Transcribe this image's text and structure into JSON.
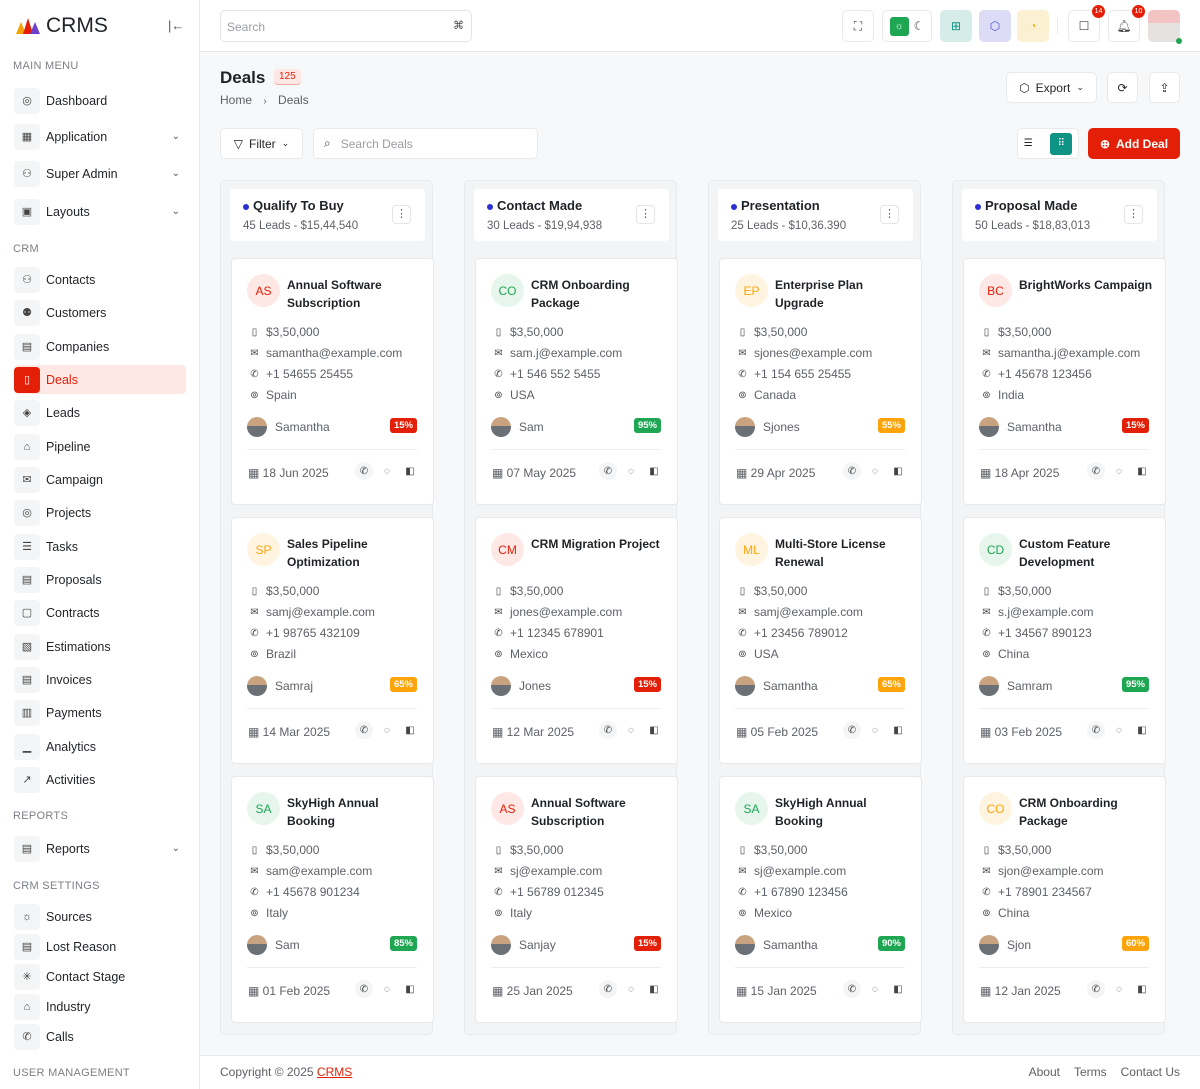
{
  "brand": {
    "name": "CRMS"
  },
  "sidebar": {
    "sections": [
      {
        "title": "MAIN MENU",
        "items": [
          {
            "label": "Dashboard",
            "icon": "◎"
          },
          {
            "label": "Application",
            "icon": "▦",
            "chevron": true
          },
          {
            "label": "Super Admin",
            "icon": "⚇",
            "chevron": true
          },
          {
            "label": "Layouts",
            "icon": "▣",
            "chevron": true
          }
        ]
      },
      {
        "title": "CRM",
        "items": [
          {
            "label": "Contacts",
            "icon": "⚇"
          },
          {
            "label": "Customers",
            "icon": "⚉"
          },
          {
            "label": "Companies",
            "icon": "▤"
          },
          {
            "label": "Deals",
            "icon": "▯",
            "active": true
          },
          {
            "label": "Leads",
            "icon": "◈"
          },
          {
            "label": "Pipeline",
            "icon": "⌂"
          },
          {
            "label": "Campaign",
            "icon": "✉"
          },
          {
            "label": "Projects",
            "icon": "◎"
          },
          {
            "label": "Tasks",
            "icon": "☰"
          },
          {
            "label": "Proposals",
            "icon": "▤"
          },
          {
            "label": "Contracts",
            "icon": "▢"
          },
          {
            "label": "Estimations",
            "icon": "▧"
          },
          {
            "label": "Invoices",
            "icon": "▤"
          },
          {
            "label": "Payments",
            "icon": "▥"
          },
          {
            "label": "Analytics",
            "icon": "▁"
          },
          {
            "label": "Activities",
            "icon": "↗"
          }
        ]
      },
      {
        "title": "REPORTS",
        "items": [
          {
            "label": "Reports",
            "icon": "▤",
            "chevron": true
          }
        ]
      },
      {
        "title": "CRM SETTINGS",
        "items": [
          {
            "label": "Sources",
            "icon": "☼"
          },
          {
            "label": "Lost Reason",
            "icon": "▤"
          },
          {
            "label": "Contact Stage",
            "icon": "✳"
          },
          {
            "label": "Industry",
            "icon": "⌂"
          },
          {
            "label": "Calls",
            "icon": "✆"
          }
        ]
      },
      {
        "title": "USER MANAGEMENT",
        "items": []
      }
    ]
  },
  "topbar": {
    "search_placeholder": "Search",
    "shortcut": "⌘",
    "notif_count": "14",
    "alert_count": "10"
  },
  "page": {
    "title": "Deals",
    "count": "125",
    "breadcrumb": [
      "Home",
      "Deals"
    ],
    "export": "Export",
    "filter": "Filter",
    "search_placeholder": "Search Deals",
    "add": "Add Deal"
  },
  "colors": {
    "accent": "#e41f07",
    "green": "#1fa653",
    "orange": "#fda40a",
    "teal": "#0e9384"
  },
  "columns": [
    {
      "title": "Qualify To Buy",
      "summary": "45 Leads - $15,44,540",
      "cards": [
        {
          "initials": "AS",
          "tone": "red",
          "name": "Annual Software Subscription",
          "amount": "$3,50,000",
          "email": "samantha@example.com",
          "phone": "+1 54655 25455",
          "country": "Spain",
          "owner": "Samantha",
          "pct": "15%",
          "pct_tone": "red",
          "date": "18 Jun 2025"
        },
        {
          "initials": "SP",
          "tone": "orange",
          "name": "Sales Pipeline Optimization",
          "amount": "$3,50,000",
          "email": "samj@example.com",
          "phone": "+1 98765 432109",
          "country": "Brazil",
          "owner": "Samraj",
          "pct": "65%",
          "pct_tone": "orange",
          "date": "14 Mar 2025"
        },
        {
          "initials": "SA",
          "tone": "green",
          "name": "SkyHigh Annual Booking",
          "amount": "$3,50,000",
          "email": "sam@example.com",
          "phone": "+1 45678 901234",
          "country": "Italy",
          "owner": "Sam",
          "pct": "85%",
          "pct_tone": "green",
          "date": "01 Feb 2025"
        }
      ]
    },
    {
      "title": "Contact Made",
      "summary": "30 Leads - $19,94,938",
      "cards": [
        {
          "initials": "CO",
          "tone": "green",
          "name": "CRM Onboarding Package",
          "amount": "$3,50,000",
          "email": "sam.j@example.com",
          "phone": "+1 546 552 5455",
          "country": "USA",
          "owner": "Sam",
          "pct": "95%",
          "pct_tone": "green",
          "date": "07 May 2025"
        },
        {
          "initials": "CM",
          "tone": "red",
          "name": "CRM Migration Project",
          "amount": "$3,50,000",
          "email": "jones@example.com",
          "phone": "+1 12345 678901",
          "country": "Mexico",
          "owner": "Jones",
          "pct": "15%",
          "pct_tone": "red",
          "date": "12 Mar 2025"
        },
        {
          "initials": "AS",
          "tone": "red",
          "name": "Annual Software Subscription",
          "amount": "$3,50,000",
          "email": "sj@example.com",
          "phone": "+1 56789 012345",
          "country": "Italy",
          "owner": "Sanjay",
          "pct": "15%",
          "pct_tone": "red",
          "date": "25 Jan 2025"
        }
      ]
    },
    {
      "title": "Presentation",
      "summary": "25 Leads - $10,36.390",
      "cards": [
        {
          "initials": "EP",
          "tone": "orange",
          "name": "Enterprise Plan Upgrade",
          "amount": "$3,50,000",
          "email": "sjones@example.com",
          "phone": "+1 154 655 25455",
          "country": "Canada",
          "owner": "Sjones",
          "pct": "55%",
          "pct_tone": "orange",
          "date": "29 Apr 2025"
        },
        {
          "initials": "ML",
          "tone": "orange",
          "name": "Multi-Store License Renewal",
          "amount": "$3,50,000",
          "email": "samj@example.com",
          "phone": "+1 23456 789012",
          "country": "USA",
          "owner": "Samantha",
          "pct": "65%",
          "pct_tone": "orange",
          "date": "05 Feb 2025"
        },
        {
          "initials": "SA",
          "tone": "green",
          "name": "SkyHigh Annual Booking",
          "amount": "$3,50,000",
          "email": "sj@example.com",
          "phone": "+1 67890 123456",
          "country": "Mexico",
          "owner": "Samantha",
          "pct": "90%",
          "pct_tone": "green",
          "date": "15 Jan 2025"
        }
      ]
    },
    {
      "title": "Proposal Made",
      "summary": "50 Leads - $18,83,013",
      "cards": [
        {
          "initials": "BC",
          "tone": "red",
          "name": "BrightWorks Campaign",
          "amount": "$3,50,000",
          "email": "samantha.j@example.com",
          "phone": "+1 45678 123456",
          "country": "India",
          "owner": "Samantha",
          "pct": "15%",
          "pct_tone": "red",
          "date": "18 Apr 2025"
        },
        {
          "initials": "CD",
          "tone": "green",
          "name": "Custom Feature Development",
          "amount": "$3,50,000",
          "email": "s.j@example.com",
          "phone": "+1 34567 890123",
          "country": "China",
          "owner": "Samram",
          "pct": "95%",
          "pct_tone": "green",
          "date": "03 Feb 2025"
        },
        {
          "initials": "CO",
          "tone": "orange",
          "name": "CRM Onboarding Package",
          "amount": "$3,50,000",
          "email": "sjon@example.com",
          "phone": "+1 78901 234567",
          "country": "China",
          "owner": "Sjon",
          "pct": "60%",
          "pct_tone": "orange",
          "date": "12 Jan 2025"
        }
      ]
    }
  ],
  "footer": {
    "copyright": "Copyright © 2025",
    "brand": "CRMS",
    "links": [
      "About",
      "Terms",
      "Contact Us"
    ]
  }
}
